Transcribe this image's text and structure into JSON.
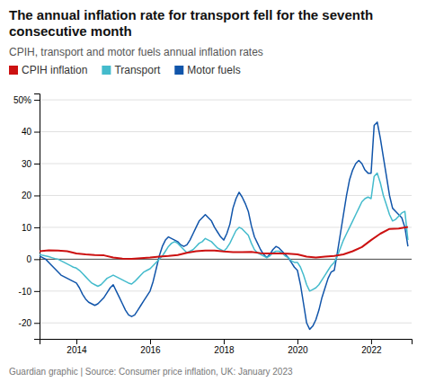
{
  "chart_data": {
    "type": "line",
    "title": "The annual inflation rate for transport fell for the seventh consecutive month",
    "subtitle": "CPIH, transport and motor fuels annual inflation rates",
    "footer": "Guardian graphic | Source: Consumer price inflation, UK: January 2023",
    "xlim": [
      2013.0,
      2023.1
    ],
    "xticks": [
      2014,
      2016,
      2018,
      2020,
      2022
    ],
    "ylim": [
      -25,
      52
    ],
    "yticks": [
      -20,
      -10,
      0,
      10,
      20,
      30,
      40,
      {
        "value": 50,
        "label": "50%"
      }
    ],
    "grid": true,
    "legend": "top-left",
    "series": [
      {
        "name": "CPIH inflation",
        "color": "#cc1111",
        "x": [
          2013.0,
          2013.25,
          2013.5,
          2013.75,
          2014.0,
          2014.25,
          2014.5,
          2014.75,
          2015.0,
          2015.25,
          2015.5,
          2015.75,
          2016.0,
          2016.25,
          2016.5,
          2016.75,
          2017.0,
          2017.25,
          2017.5,
          2017.75,
          2018.0,
          2018.25,
          2018.5,
          2018.75,
          2019.0,
          2019.25,
          2019.5,
          2019.75,
          2020.0,
          2020.25,
          2020.5,
          2020.75,
          2021.0,
          2021.25,
          2021.5,
          2021.75,
          2022.0,
          2022.25,
          2022.5,
          2022.75,
          2023.0
        ],
        "values": [
          2.5,
          2.8,
          2.7,
          2.5,
          1.8,
          1.5,
          1.3,
          1.2,
          0.5,
          0.2,
          0.1,
          0.3,
          0.5,
          0.8,
          1.0,
          1.3,
          2.0,
          2.5,
          2.7,
          2.7,
          2.4,
          2.2,
          2.2,
          2.3,
          1.9,
          1.8,
          1.8,
          1.7,
          1.5,
          0.8,
          0.5,
          0.8,
          1.0,
          1.5,
          2.5,
          3.8,
          6.0,
          8.0,
          9.5,
          9.6,
          10.1
        ]
      },
      {
        "name": "Transport",
        "color": "#44bbcc",
        "x": [
          2013.0,
          2013.083,
          2013.167,
          2013.25,
          2013.333,
          2013.417,
          2013.5,
          2013.583,
          2013.667,
          2013.75,
          2013.833,
          2013.917,
          2014.0,
          2014.083,
          2014.167,
          2014.25,
          2014.333,
          2014.417,
          2014.5,
          2014.583,
          2014.667,
          2014.75,
          2014.833,
          2014.917,
          2015.0,
          2015.083,
          2015.167,
          2015.25,
          2015.333,
          2015.417,
          2015.5,
          2015.583,
          2015.667,
          2015.75,
          2015.833,
          2015.917,
          2016.0,
          2016.083,
          2016.167,
          2016.25,
          2016.333,
          2016.417,
          2016.5,
          2016.583,
          2016.667,
          2016.75,
          2016.833,
          2016.917,
          2017.0,
          2017.083,
          2017.167,
          2017.25,
          2017.333,
          2017.417,
          2017.5,
          2017.583,
          2017.667,
          2017.75,
          2017.833,
          2017.917,
          2018.0,
          2018.083,
          2018.167,
          2018.25,
          2018.333,
          2018.417,
          2018.5,
          2018.583,
          2018.667,
          2018.75,
          2018.833,
          2018.917,
          2019.0,
          2019.083,
          2019.167,
          2019.25,
          2019.333,
          2019.417,
          2019.5,
          2019.583,
          2019.667,
          2019.75,
          2019.833,
          2019.917,
          2020.0,
          2020.083,
          2020.167,
          2020.25,
          2020.333,
          2020.417,
          2020.5,
          2020.583,
          2020.667,
          2020.75,
          2020.833,
          2020.917,
          2021.0,
          2021.083,
          2021.167,
          2021.25,
          2021.333,
          2021.417,
          2021.5,
          2021.583,
          2021.667,
          2021.75,
          2021.833,
          2021.917,
          2022.0,
          2022.083,
          2022.167,
          2022.25,
          2022.333,
          2022.417,
          2022.5,
          2022.583,
          2022.667,
          2022.75,
          2022.833,
          2022.917,
          2023.0
        ],
        "values": [
          1.5,
          1.2,
          1.0,
          0.8,
          0.5,
          0.2,
          0.0,
          -0.5,
          -1.0,
          -1.5,
          -2.0,
          -2.5,
          -2.8,
          -3.5,
          -4.5,
          -5.5,
          -6.5,
          -7.5,
          -8.0,
          -8.5,
          -8.0,
          -7.0,
          -6.0,
          -5.5,
          -5.0,
          -5.5,
          -6.0,
          -6.5,
          -7.0,
          -7.5,
          -7.8,
          -7.0,
          -6.0,
          -5.0,
          -4.0,
          -3.5,
          -3.0,
          -2.0,
          -1.0,
          0.0,
          1.0,
          2.5,
          4.0,
          5.0,
          5.5,
          5.0,
          4.0,
          3.0,
          2.0,
          2.5,
          3.0,
          4.0,
          5.0,
          5.5,
          6.5,
          6.0,
          5.5,
          4.5,
          3.5,
          3.0,
          2.5,
          3.5,
          5.0,
          7.0,
          9.0,
          10.0,
          9.5,
          8.5,
          7.5,
          5.0,
          3.0,
          2.0,
          1.5,
          1.0,
          0.5,
          1.0,
          2.0,
          2.5,
          2.5,
          2.0,
          1.0,
          0.5,
          -0.5,
          -1.0,
          -1.0,
          -2.5,
          -5.0,
          -8.0,
          -10.0,
          -9.5,
          -9.0,
          -8.0,
          -6.5,
          -5.0,
          -3.5,
          -2.0,
          -1.0,
          1.0,
          3.5,
          6.0,
          8.0,
          10.0,
          12.0,
          14.0,
          16.0,
          18.0,
          19.0,
          19.5,
          19.0,
          26.0,
          27.0,
          24.0,
          20.0,
          17.0,
          14.0,
          12.0,
          12.5,
          13.5,
          14.5,
          15.0,
          6.0
        ]
      },
      {
        "name": "Motor fuels",
        "color": "#1155aa",
        "x": [
          2013.0,
          2013.083,
          2013.167,
          2013.25,
          2013.333,
          2013.417,
          2013.5,
          2013.583,
          2013.667,
          2013.75,
          2013.833,
          2013.917,
          2014.0,
          2014.083,
          2014.167,
          2014.25,
          2014.333,
          2014.417,
          2014.5,
          2014.583,
          2014.667,
          2014.75,
          2014.833,
          2014.917,
          2015.0,
          2015.083,
          2015.167,
          2015.25,
          2015.333,
          2015.417,
          2015.5,
          2015.583,
          2015.667,
          2015.75,
          2015.833,
          2015.917,
          2016.0,
          2016.083,
          2016.167,
          2016.25,
          2016.333,
          2016.417,
          2016.5,
          2016.583,
          2016.667,
          2016.75,
          2016.833,
          2016.917,
          2017.0,
          2017.083,
          2017.167,
          2017.25,
          2017.333,
          2017.417,
          2017.5,
          2017.583,
          2017.667,
          2017.75,
          2017.833,
          2017.917,
          2018.0,
          2018.083,
          2018.167,
          2018.25,
          2018.333,
          2018.417,
          2018.5,
          2018.583,
          2018.667,
          2018.75,
          2018.833,
          2018.917,
          2019.0,
          2019.083,
          2019.167,
          2019.25,
          2019.333,
          2019.417,
          2019.5,
          2019.583,
          2019.667,
          2019.75,
          2019.833,
          2019.917,
          2020.0,
          2020.083,
          2020.167,
          2020.25,
          2020.333,
          2020.417,
          2020.5,
          2020.583,
          2020.667,
          2020.75,
          2020.833,
          2020.917,
          2021.0,
          2021.083,
          2021.167,
          2021.25,
          2021.333,
          2021.417,
          2021.5,
          2021.583,
          2021.667,
          2021.75,
          2021.833,
          2021.917,
          2022.0,
          2022.083,
          2022.167,
          2022.25,
          2022.333,
          2022.417,
          2022.5,
          2022.583,
          2022.667,
          2022.75,
          2022.833,
          2022.917,
          2023.0
        ],
        "values": [
          1.0,
          0.5,
          0.0,
          -1.0,
          -2.0,
          -3.0,
          -4.0,
          -5.0,
          -5.5,
          -6.0,
          -6.5,
          -7.0,
          -7.5,
          -9.0,
          -11.0,
          -12.5,
          -13.5,
          -14.0,
          -14.5,
          -14.0,
          -13.0,
          -12.0,
          -10.5,
          -9.0,
          -8.0,
          -10.0,
          -12.0,
          -14.0,
          -16.0,
          -17.5,
          -18.0,
          -17.5,
          -16.0,
          -14.5,
          -13.0,
          -11.5,
          -10.0,
          -7.0,
          -3.0,
          1.0,
          4.0,
          6.0,
          7.0,
          6.5,
          6.0,
          5.5,
          4.5,
          4.0,
          4.5,
          6.0,
          8.0,
          10.0,
          12.0,
          13.0,
          14.0,
          13.0,
          12.0,
          10.0,
          8.5,
          7.0,
          6.0,
          8.0,
          11.0,
          16.0,
          19.0,
          21.0,
          19.5,
          17.5,
          15.0,
          10.5,
          7.0,
          5.0,
          3.0,
          1.5,
          0.5,
          1.5,
          3.0,
          4.0,
          3.5,
          2.5,
          1.5,
          0.5,
          -1.0,
          -2.5,
          -3.5,
          -8.0,
          -14.0,
          -20.0,
          -22.0,
          -21.0,
          -19.0,
          -16.0,
          -12.0,
          -9.0,
          -6.0,
          -4.0,
          -3.5,
          2.0,
          8.0,
          14.0,
          20.0,
          25.0,
          28.0,
          30.0,
          31.0,
          30.0,
          28.0,
          27.0,
          27.0,
          42.0,
          43.0,
          38.0,
          32.0,
          26.0,
          20.0,
          16.0,
          15.0,
          14.0,
          13.0,
          10.0,
          4.0
        ]
      }
    ]
  }
}
